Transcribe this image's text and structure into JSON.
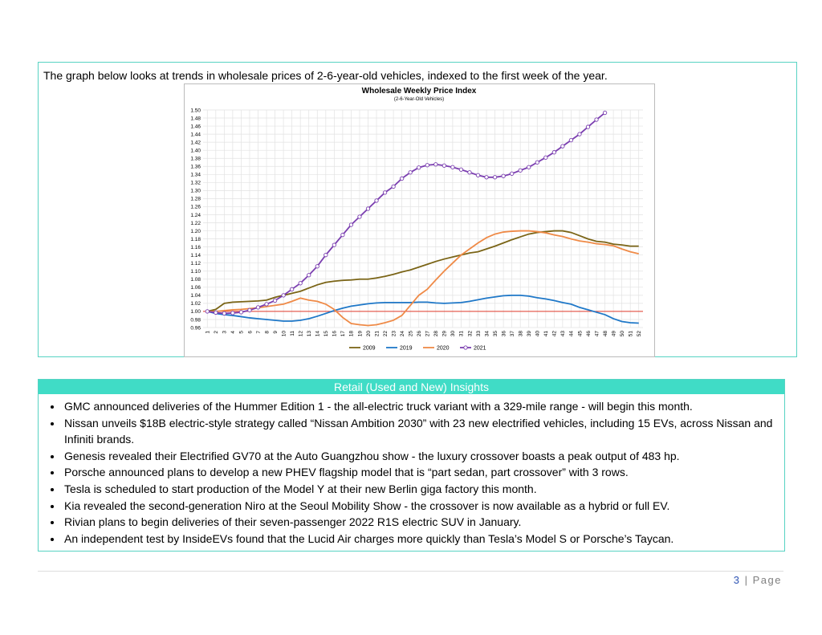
{
  "intro": "The graph below looks at trends in wholesale prices of 2-6-year-old vehicles, indexed to the first week of the year.",
  "chart_data": {
    "type": "line",
    "title": "Wholesale Weekly Price Index",
    "subtitle": "(2-6-Year-Old Vehicles)",
    "categories": [
      "1",
      "2",
      "3",
      "4",
      "5",
      "6",
      "7",
      "8",
      "9",
      "10",
      "11",
      "12",
      "13",
      "14",
      "15",
      "16",
      "17",
      "18",
      "19",
      "20",
      "21",
      "22",
      "23",
      "24",
      "25",
      "26",
      "27",
      "28",
      "29",
      "30",
      "31",
      "32",
      "33",
      "34",
      "35",
      "36",
      "37",
      "38",
      "39",
      "40",
      "41",
      "42",
      "43",
      "44",
      "45",
      "46",
      "47",
      "48",
      "49",
      "50",
      "51",
      "52"
    ],
    "series": [
      {
        "name": "2009",
        "color": "#7a6416",
        "values": [
          1.0,
          1.005,
          1.02,
          1.023,
          1.024,
          1.025,
          1.026,
          1.028,
          1.035,
          1.04,
          1.045,
          1.05,
          1.058,
          1.066,
          1.072,
          1.075,
          1.077,
          1.078,
          1.08,
          1.08,
          1.083,
          1.087,
          1.092,
          1.098,
          1.103,
          1.11,
          1.117,
          1.124,
          1.13,
          1.135,
          1.14,
          1.145,
          1.148,
          1.155,
          1.162,
          1.17,
          1.178,
          1.185,
          1.192,
          1.196,
          1.198,
          1.2,
          1.2,
          1.196,
          1.188,
          1.18,
          1.174,
          1.172,
          1.167,
          1.165,
          1.162,
          1.162
        ]
      },
      {
        "name": "2019",
        "color": "#1f78c8",
        "values": [
          1.0,
          0.995,
          0.992,
          0.99,
          0.987,
          0.984,
          0.982,
          0.98,
          0.978,
          0.976,
          0.976,
          0.978,
          0.982,
          0.988,
          0.995,
          1.002,
          1.008,
          1.013,
          1.016,
          1.019,
          1.021,
          1.022,
          1.022,
          1.022,
          1.022,
          1.023,
          1.023,
          1.021,
          1.02,
          1.021,
          1.022,
          1.025,
          1.029,
          1.033,
          1.036,
          1.039,
          1.04,
          1.04,
          1.038,
          1.034,
          1.031,
          1.027,
          1.022,
          1.018,
          1.01,
          1.004,
          0.998,
          0.992,
          0.982,
          0.975,
          0.972,
          0.971
        ]
      },
      {
        "name": "2020",
        "color": "#ef8a47",
        "values": [
          1.0,
          1.0,
          1.002,
          1.004,
          1.005,
          1.007,
          1.009,
          1.012,
          1.015,
          1.018,
          1.025,
          1.033,
          1.028,
          1.025,
          1.018,
          1.005,
          0.985,
          0.97,
          0.967,
          0.965,
          0.967,
          0.972,
          0.978,
          0.99,
          1.015,
          1.04,
          1.055,
          1.078,
          1.1,
          1.12,
          1.14,
          1.155,
          1.17,
          1.183,
          1.192,
          1.197,
          1.199,
          1.2,
          1.2,
          1.198,
          1.195,
          1.19,
          1.186,
          1.18,
          1.175,
          1.172,
          1.168,
          1.166,
          1.163,
          1.155,
          1.148,
          1.143
        ]
      },
      {
        "name": "2021",
        "color": "#7b3fb0",
        "marker": "circle",
        "values": [
          1.0,
          0.997,
          0.995,
          0.996,
          0.998,
          1.003,
          1.01,
          1.018,
          1.027,
          1.04,
          1.055,
          1.07,
          1.09,
          1.112,
          1.14,
          1.165,
          1.19,
          1.215,
          1.235,
          1.255,
          1.275,
          1.295,
          1.31,
          1.33,
          1.345,
          1.357,
          1.363,
          1.365,
          1.362,
          1.358,
          1.352,
          1.345,
          1.338,
          1.333,
          1.333,
          1.336,
          1.342,
          1.35,
          1.358,
          1.37,
          1.382,
          1.395,
          1.41,
          1.425,
          1.44,
          1.458,
          1.476,
          1.493,
          null,
          null,
          null,
          null
        ]
      }
    ],
    "ylim": [
      0.96,
      1.5
    ],
    "yticks": [
      {
        "value": 0.96,
        "label": "0.96"
      },
      {
        "value": 0.98,
        "label": "0.98"
      },
      {
        "value": 1,
        "label": "1.00"
      },
      {
        "value": 1.02,
        "label": "1.02"
      },
      {
        "value": 1.04,
        "label": "1.04"
      },
      {
        "value": 1.06,
        "label": "1.06"
      },
      {
        "value": 1.08,
        "label": "1.08"
      },
      {
        "value": 1.1,
        "label": "1.10"
      },
      {
        "value": 1.12,
        "label": "1.12"
      },
      {
        "value": 1.14,
        "label": "1.14"
      },
      {
        "value": 1.16,
        "label": "1.16"
      },
      {
        "value": 1.18,
        "label": "1.18"
      },
      {
        "value": 1.2,
        "label": "1.20"
      },
      {
        "value": 1.22,
        "label": "1.22"
      },
      {
        "value": 1.24,
        "label": "1.24"
      },
      {
        "value": 1.26,
        "label": "1.26"
      },
      {
        "value": 1.28,
        "label": "1.28"
      },
      {
        "value": 1.3,
        "label": "1.30"
      },
      {
        "value": 1.32,
        "label": "1.32"
      },
      {
        "value": 1.34,
        "label": "1.34"
      },
      {
        "value": 1.36,
        "label": "1.36"
      },
      {
        "value": 1.38,
        "label": "1.38"
      },
      {
        "value": 1.4,
        "label": "1.40"
      },
      {
        "value": 1.42,
        "label": "1.42"
      },
      {
        "value": 1.44,
        "label": "1.44"
      },
      {
        "value": 1.46,
        "label": "1.46"
      },
      {
        "value": 1.48,
        "label": "1.48"
      },
      {
        "value": 1.5,
        "label": "1.50"
      }
    ],
    "baseline": 1,
    "baseline_color": "#e03a2a",
    "grid": true,
    "legend": "bottom"
  },
  "insights": {
    "title": "Retail (Used and New) Insights",
    "items": [
      "GMC announced deliveries of the Hummer Edition 1 - the all-electric truck variant with a 329-mile range - will begin this month.",
      "Nissan unveils $18B electric-style strategy called “Nissan Ambition 2030” with 23 new electrified vehicles, including 15 EVs, across Nissan and Infiniti brands.",
      "Genesis revealed their Electrified GV70 at the Auto Guangzhou show - the luxury crossover boasts a peak output of 483 hp.",
      "Porsche announced plans to develop a new PHEV flagship model that is “part sedan, part crossover” with 3 rows.",
      "Tesla is scheduled to start production of the Model Y at their new Berlin giga factory this month.",
      "Kia revealed the second-generation Niro at the Seoul Mobility Show - the crossover is now available as a hybrid or full EV.",
      "Rivian plans to begin deliveries of their seven-passenger 2022 R1S electric SUV in January.",
      "An independent test by InsideEVs found that the Lucid Air charges more quickly than Tesla’s Model S or Porsche’s Taycan."
    ]
  },
  "footer": {
    "page_number": "3",
    "page_label": "| Page"
  }
}
